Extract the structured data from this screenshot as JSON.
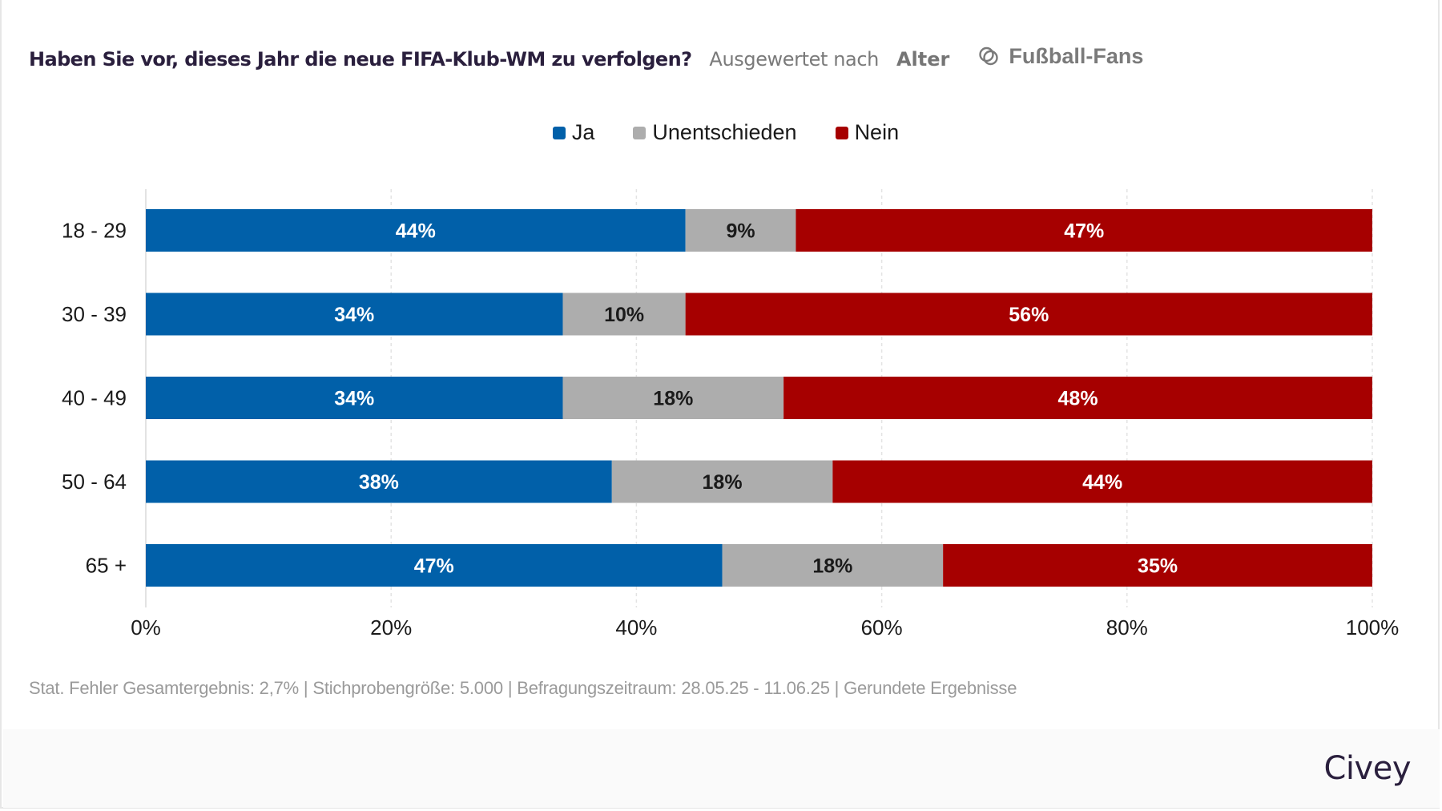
{
  "header": {
    "title": "Haben Sie vor, dieses Jahr die neue FIFA-Klub-WM zu verfolgen?",
    "evaluated_by_label": "Ausgewertet nach",
    "evaluated_by_value": "Alter",
    "filter_icon": "overlapping-circles-icon",
    "filter_label": "Fußball-Fans"
  },
  "chart_data": {
    "type": "bar",
    "orientation": "horizontal",
    "stacked": true,
    "title": "Haben Sie vor, dieses Jahr die neue FIFA-Klub-WM zu verfolgen?",
    "categories": [
      "18 - 29",
      "30 - 39",
      "40 - 49",
      "50 - 64",
      "65 +"
    ],
    "series": [
      {
        "name": "Ja",
        "color": "#0160a9",
        "values": [
          44,
          34,
          34,
          38,
          47
        ],
        "labels": [
          "44%",
          "34%",
          "34%",
          "38%",
          "47%"
        ]
      },
      {
        "name": "Unentschieden",
        "color": "#adadad",
        "values": [
          9,
          10,
          18,
          18,
          18
        ],
        "labels": [
          "9%",
          "10%",
          "18%",
          "18%",
          "18%"
        ]
      },
      {
        "name": "Nein",
        "color": "#a60000",
        "values": [
          47,
          56,
          48,
          44,
          35
        ],
        "labels": [
          "47%",
          "56%",
          "48%",
          "44%",
          "35%"
        ]
      }
    ],
    "xlim": [
      0,
      100
    ],
    "xticks": [
      0,
      20,
      40,
      60,
      80,
      100
    ],
    "xtick_labels": [
      "0%",
      "20%",
      "40%",
      "60%",
      "80%",
      "100%"
    ],
    "xlabel": "",
    "ylabel": "",
    "grid": "vertical dashed",
    "legend_position": "top-center"
  },
  "footnote": "Stat. Fehler Gesamtergebnis: 2,7% | Stichprobengröße: 5.000 | Befragungszeitraum: 28.05.25 - 11.06.25 | Gerundete Ergebnisse",
  "brand": "Civey"
}
